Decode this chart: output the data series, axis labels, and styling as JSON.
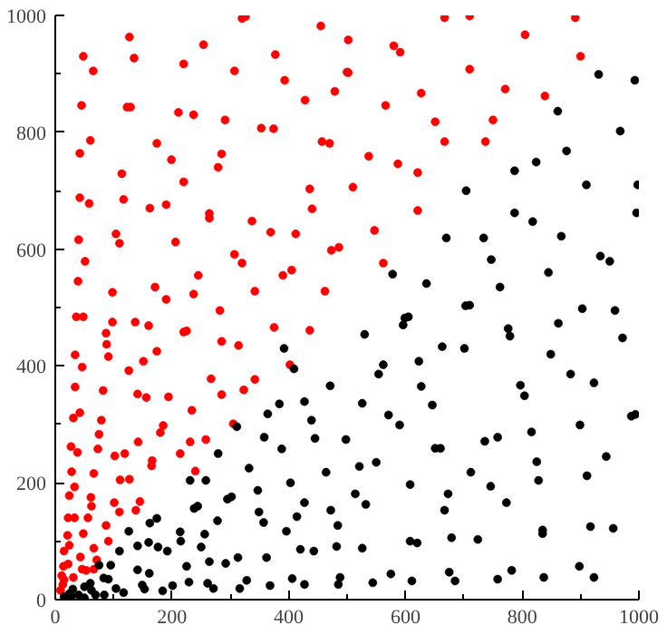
{
  "chart_data": {
    "type": "scatter",
    "xlim": [
      0,
      1000
    ],
    "ylim": [
      0,
      1000
    ],
    "xticks": [
      0,
      200,
      400,
      600,
      800,
      1000
    ],
    "yticks": [
      0,
      200,
      400,
      600,
      800,
      1000
    ],
    "grid": false,
    "marker": "circle",
    "series": [
      {
        "color": "#ff0000",
        "x": [
          48,
          127,
          135,
          65,
          254,
          220,
          320,
          326,
          307,
          377,
          393,
          455,
          428,
          479,
          500,
          45,
          123,
          129,
          211,
          237,
          291,
          353,
          374,
          60,
          42,
          174,
          199,
          285,
          279,
          457,
          470,
          114,
          220,
          42,
          58,
          117,
          162,
          190,
          264,
          264,
          436,
          440,
          337,
          369,
          412,
          104,
          110,
          40,
          206,
          51,
          307,
          320,
          473,
          486,
          405,
          390,
          245,
          39,
          171,
          98,
          190,
          237,
          342,
          462,
          282,
          36,
          48,
          667,
          710,
          891,
          502,
          580,
          591,
          805,
          900,
          502,
          710,
          627,
          771,
          839,
          566,
          651,
          750,
          667,
          737,
          537,
          587,
          621,
          510,
          621,
          547,
          562,
          98,
          137,
          160,
          220,
          225,
          375,
          436,
          87,
          88,
          34,
          91,
          174,
          285,
          314,
          46,
          151,
          126,
          402,
          34,
          82,
          141,
          156,
          194,
          267,
          285,
          342,
          323,
          42,
          31,
          79,
          234,
          185,
          180,
          75,
          73,
          27,
          38,
          142,
          231,
          258,
          305,
          102,
          119,
          166,
          165,
          214,
          240,
          28,
          66,
          111,
          127,
          24,
          61,
          33,
          62,
          101,
          145,
          138,
          110,
          56,
          22,
          33,
          21,
          48,
          87,
          91,
          24,
          15,
          66,
          71,
          43,
          14,
          22,
          46,
          53,
          66,
          31,
          15,
          11,
          9,
          13
        ],
        "values": [
          930,
          963,
          927,
          905,
          950,
          917,
          995,
          998,
          905,
          933,
          889,
          982,
          855,
          870,
          903,
          846,
          843,
          843,
          834,
          830,
          821,
          807,
          806,
          786,
          764,
          781,
          753,
          763,
          740,
          784,
          781,
          729,
          715,
          688,
          678,
          685,
          670,
          676,
          661,
          653,
          703,
          669,
          648,
          629,
          626,
          626,
          610,
          616,
          612,
          579,
          591,
          576,
          598,
          603,
          564,
          555,
          555,
          545,
          535,
          526,
          514,
          523,
          528,
          528,
          495,
          484,
          484,
          996,
          999,
          996,
          958,
          948,
          937,
          967,
          930,
          902,
          908,
          867,
          874,
          862,
          846,
          818,
          821,
          784,
          784,
          759,
          746,
          731,
          706,
          666,
          632,
          576,
          475,
          475,
          469,
          458,
          460,
          466,
          461,
          456,
          437,
          419,
          416,
          425,
          442,
          435,
          398,
          408,
          392,
          402,
          364,
          358,
          352,
          346,
          347,
          378,
          351,
          377,
          359,
          320,
          311,
          307,
          324,
          298,
          286,
          283,
          258,
          262,
          252,
          270,
          270,
          274,
          301,
          246,
          250,
          238,
          229,
          250,
          220,
          219,
          216,
          205,
          206,
          178,
          175,
          193,
          160,
          166,
          168,
          153,
          150,
          140,
          140,
          140,
          110,
          113,
          127,
          100,
          93,
          83,
          88,
          68,
          73,
          57,
          61,
          52,
          50,
          52,
          38,
          34,
          41,
          16,
          26
        ]
      },
      {
        "color": "#000000",
        "x": [
          931,
          993,
          861,
          968,
          876,
          824,
          787,
          704,
          910,
          998,
          996,
          787,
          818,
          867,
          670,
          734,
          747,
          934,
          950,
          845,
          578,
          636,
          762,
          710,
          903,
          959,
          605,
          409,
          392,
          471,
          427,
          384,
          364,
          439,
          311,
          445,
          498,
          358,
          279,
          332,
          388,
          231,
          258,
          403,
          464,
          347,
          302,
          295,
          244,
          238,
          349,
          357,
          427,
          472,
          414,
          174,
          162,
          278,
          484,
          126,
          214,
          256,
          396,
          160,
          215,
          141,
          176,
          250,
          192,
          110,
          75,
          95,
          141,
          161,
          225,
          264,
          292,
          313,
          362,
          420,
          443,
          482,
          488,
          485,
          427,
          406,
          368,
          328,
          316,
          261,
          271,
          229,
          201,
          184,
          153,
          149,
          117,
          104,
          91,
          83,
          60,
          62,
          69,
          84,
          40,
          24,
          28,
          15,
          50,
          30,
          50,
          703,
          599,
          596,
          530,
          776,
          779,
          862,
          972,
          663,
          701,
          849,
          562,
          554,
          623,
          627,
          883,
          923,
          797,
          804,
          526,
          646,
          571,
          590,
          899,
          987,
          994,
          816,
          736,
          758,
          651,
          660,
          550,
          521,
          825,
          944,
          712,
          911,
          828,
          608,
          746,
          514,
          673,
          532,
          773,
          667,
          835,
          835,
          917,
          956,
          679,
          724,
          608,
          620,
          526,
          898,
          782,
          675,
          575,
          923,
          837,
          758,
          685,
          611,
          544
        ],
        "values": [
          899,
          889,
          836,
          802,
          768,
          749,
          734,
          700,
          710,
          710,
          662,
          662,
          647,
          622,
          619,
          619,
          582,
          588,
          579,
          560,
          557,
          541,
          535,
          504,
          498,
          495,
          484,
          395,
          430,
          366,
          339,
          335,
          318,
          307,
          296,
          276,
          274,
          278,
          250,
          225,
          258,
          204,
          204,
          200,
          218,
          187,
          176,
          172,
          160,
          156,
          150,
          132,
          166,
          153,
          142,
          139,
          131,
          135,
          127,
          117,
          116,
          112,
          117,
          98,
          100,
          92,
          90,
          90,
          83,
          83,
          59,
          59,
          51,
          45,
          57,
          65,
          62,
          72,
          72,
          86,
          83,
          91,
          38,
          26,
          26,
          36,
          24,
          33,
          19,
          28,
          19,
          30,
          24,
          15,
          18,
          25,
          12,
          19,
          35,
          37,
          28,
          16,
          8,
          8,
          8,
          10,
          6,
          5,
          3,
          18,
          22,
          503,
          482,
          470,
          454,
          464,
          451,
          473,
          448,
          433,
          430,
          420,
          402,
          386,
          408,
          365,
          386,
          371,
          367,
          349,
          336,
          333,
          316,
          299,
          299,
          314,
          317,
          287,
          271,
          278,
          259,
          259,
          235,
          228,
          236,
          245,
          218,
          212,
          204,
          197,
          194,
          181,
          181,
          163,
          166,
          153,
          119,
          113,
          125,
          122,
          106,
          103,
          100,
          97,
          88,
          57,
          50,
          47,
          44,
          38,
          38,
          35,
          32,
          32,
          29
        ]
      }
    ]
  }
}
